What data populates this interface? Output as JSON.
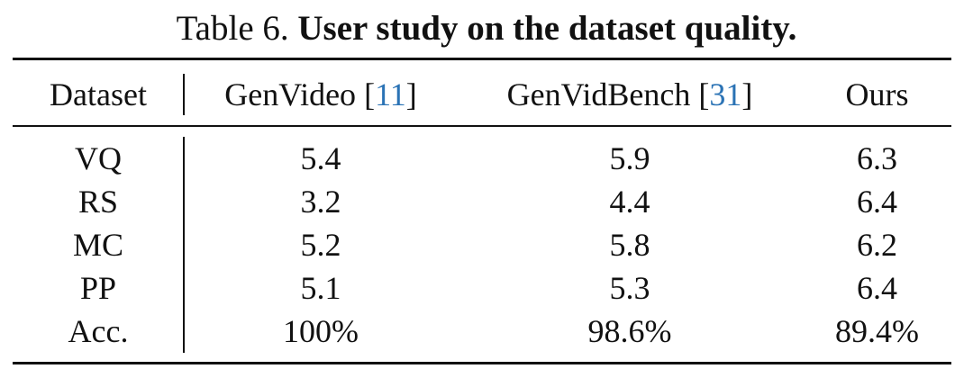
{
  "caption": {
    "prefix": "Table 6.",
    "title": "User study on the dataset quality."
  },
  "table": {
    "header": {
      "dataset": "Dataset",
      "columns": [
        {
          "name": "GenVideo",
          "ref": "11"
        },
        {
          "name": "GenVidBench",
          "ref": "31"
        },
        {
          "name": "Ours",
          "ref": ""
        }
      ]
    },
    "rows": [
      {
        "label": "VQ",
        "values": [
          "5.4",
          "5.9",
          "6.3"
        ]
      },
      {
        "label": "RS",
        "values": [
          "3.2",
          "4.4",
          "6.4"
        ]
      },
      {
        "label": "MC",
        "values": [
          "5.2",
          "5.8",
          "6.2"
        ]
      },
      {
        "label": "PP",
        "values": [
          "5.1",
          "5.3",
          "6.4"
        ]
      },
      {
        "label": "Acc.",
        "values": [
          "100%",
          "98.6%",
          "89.4%"
        ]
      }
    ]
  }
}
